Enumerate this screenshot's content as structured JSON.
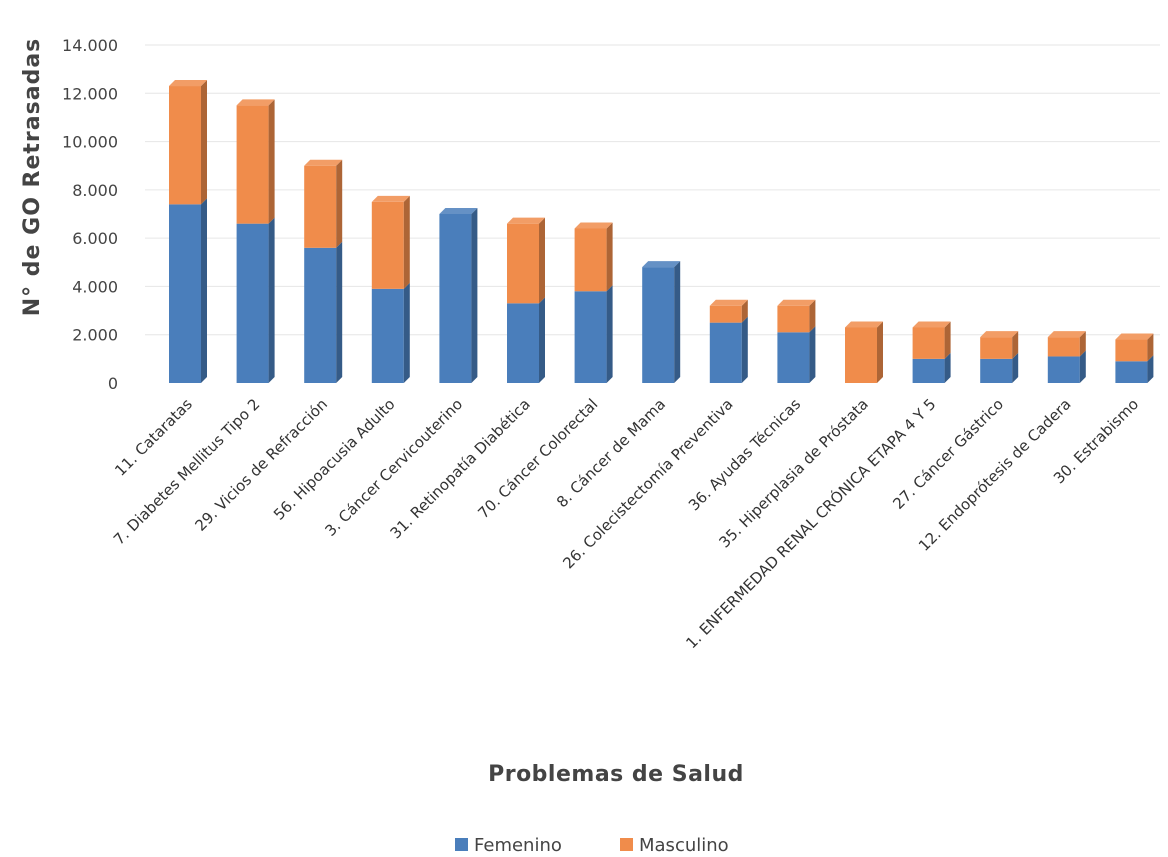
{
  "chart_data": {
    "type": "bar",
    "stacked": true,
    "title": "",
    "xlabel": "Problemas de Salud",
    "ylabel": "N° de GO Retrasadas",
    "ylim": [
      0,
      14000
    ],
    "yticks": [
      0,
      2000,
      4000,
      6000,
      8000,
      10000,
      12000,
      14000
    ],
    "ytick_labels": [
      "0",
      "2.000",
      "4.000",
      "6.000",
      "8.000",
      "10.000",
      "12.000",
      "14.000"
    ],
    "grid": true,
    "legend_position": "bottom",
    "categories": [
      "11. Cataratas",
      "7. Diabetes Mellitus Tipo 2",
      "29. Vicios de Refracción",
      "56. Hipoacusia Adulto",
      "3. Cáncer Cervicouterino",
      "31. Retinopatía Diabética",
      "70. Cáncer Colorectal",
      "8. Cáncer de Mama",
      "26. Colecistectomía Preventiva",
      "36. Ayudas Técnicas",
      "35. Hiperplasia de Próstata",
      "1. ENFERMEDAD RENAL CRÓNICA ETAPA 4 Y 5",
      "27. Cáncer Gástrico",
      "12. Endoprótesis de Cadera",
      "30. Estrabismo"
    ],
    "series": [
      {
        "name": "Femenino",
        "color": "#4a7ebb",
        "values": [
          7400,
          6600,
          5600,
          3900,
          7000,
          3300,
          3800,
          4800,
          2500,
          2100,
          0,
          1000,
          1000,
          1100,
          900
        ]
      },
      {
        "name": "Masculino",
        "color": "#f08c4b",
        "values": [
          4900,
          4900,
          3400,
          3600,
          0,
          3300,
          2600,
          0,
          700,
          1100,
          2300,
          1300,
          900,
          800,
          900
        ]
      }
    ]
  }
}
